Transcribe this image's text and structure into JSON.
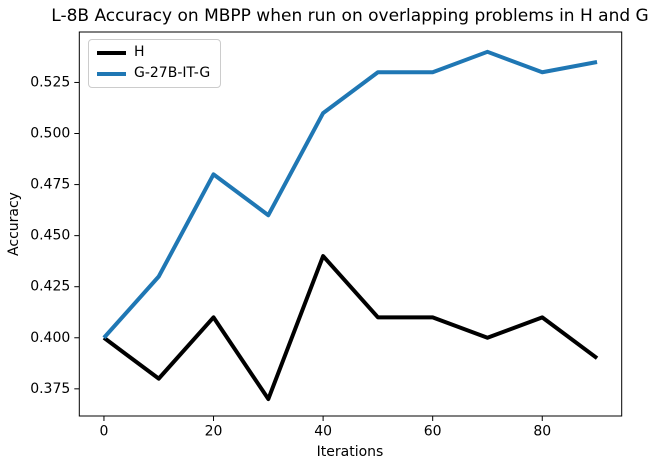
{
  "chart_data": {
    "type": "line",
    "title": "L-8B Accuracy on MBPP when run on overlapping problems in H and G",
    "xlabel": "Iterations",
    "ylabel": "Accuracy",
    "x": [
      0,
      10,
      20,
      30,
      40,
      50,
      60,
      70,
      80,
      90
    ],
    "series": [
      {
        "name": "H",
        "color": "#000000",
        "values": [
          0.4,
          0.38,
          0.41,
          0.37,
          0.44,
          0.41,
          0.41,
          0.4,
          0.41,
          0.39
        ]
      },
      {
        "name": "G-27B-IT-G",
        "color": "#1f77b4",
        "values": [
          0.4,
          0.43,
          0.48,
          0.46,
          0.51,
          0.53,
          0.53,
          0.54,
          0.53,
          0.535
        ]
      }
    ],
    "xticks": [
      0,
      20,
      40,
      60,
      80
    ],
    "yticks": [
      0.375,
      0.4,
      0.425,
      0.45,
      0.475,
      0.5,
      0.525
    ],
    "xlim": [
      -4.5,
      94.5
    ],
    "ylim": [
      0.3617,
      0.5497
    ],
    "grid": false,
    "legend_position": "upper left",
    "axis_color": "#000000"
  }
}
